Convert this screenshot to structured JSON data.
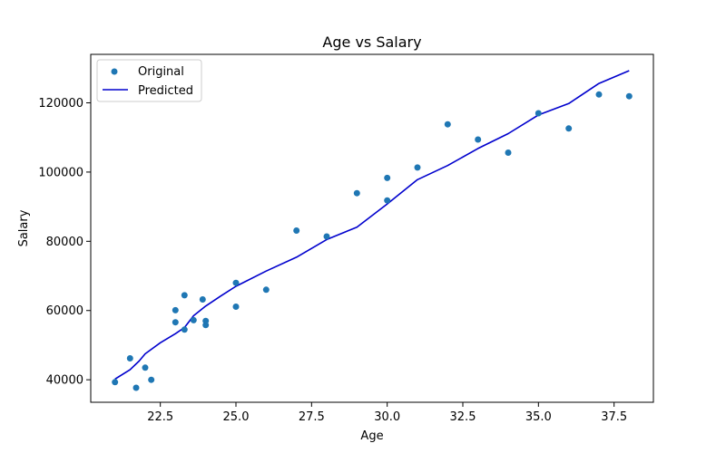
{
  "chart_data": {
    "type": "scatter",
    "title": "Age vs Salary",
    "xlabel": "Age",
    "ylabel": "Salary",
    "xlim": [
      20.2,
      38.8
    ],
    "ylim": [
      33500,
      134000
    ],
    "x_ticks": [
      22.5,
      25.0,
      27.5,
      30.0,
      32.5,
      35.0,
      37.5
    ],
    "x_tick_labels": [
      "22.5",
      "25.0",
      "27.5",
      "30.0",
      "32.5",
      "35.0",
      "37.5"
    ],
    "y_ticks": [
      40000,
      60000,
      80000,
      100000,
      120000
    ],
    "y_tick_labels": [
      "40000",
      "60000",
      "80000",
      "100000",
      "120000"
    ],
    "grid": false,
    "legend_position": "upper-left",
    "series": [
      {
        "name": "Original",
        "kind": "scatter",
        "color": "#1f77b4",
        "points": [
          [
            21.0,
            39300
          ],
          [
            21.5,
            46200
          ],
          [
            21.7,
            37700
          ],
          [
            22.0,
            43500
          ],
          [
            22.2,
            40000
          ],
          [
            23.0,
            56600
          ],
          [
            23.0,
            60100
          ],
          [
            23.3,
            54500
          ],
          [
            23.3,
            64400
          ],
          [
            23.6,
            57200
          ],
          [
            23.9,
            63200
          ],
          [
            24.0,
            55800
          ],
          [
            24.0,
            57000
          ],
          [
            25.0,
            61100
          ],
          [
            25.0,
            68000
          ],
          [
            26.0,
            66000
          ],
          [
            27.0,
            83100
          ],
          [
            28.0,
            81400
          ],
          [
            29.0,
            93900
          ],
          [
            30.0,
            91800
          ],
          [
            30.0,
            98300
          ],
          [
            31.0,
            101300
          ],
          [
            32.0,
            113800
          ],
          [
            33.0,
            109400
          ],
          [
            34.0,
            105600
          ],
          [
            35.0,
            117000
          ],
          [
            36.0,
            112600
          ],
          [
            37.0,
            122400
          ],
          [
            38.0,
            121900
          ]
        ]
      },
      {
        "name": "Predicted",
        "kind": "line",
        "color": "#0000cd",
        "points": [
          [
            21.0,
            40200
          ],
          [
            21.5,
            42900
          ],
          [
            21.8,
            45400
          ],
          [
            22.0,
            47500
          ],
          [
            22.5,
            50700
          ],
          [
            23.0,
            53300
          ],
          [
            23.3,
            55100
          ],
          [
            23.6,
            58500
          ],
          [
            24.0,
            61300
          ],
          [
            24.5,
            64200
          ],
          [
            25.0,
            67000
          ],
          [
            26.0,
            71400
          ],
          [
            27.0,
            75400
          ],
          [
            28.0,
            80500
          ],
          [
            29.0,
            84100
          ],
          [
            30.0,
            90800
          ],
          [
            31.0,
            97800
          ],
          [
            32.0,
            101900
          ],
          [
            33.0,
            106800
          ],
          [
            34.0,
            111100
          ],
          [
            35.0,
            116500
          ],
          [
            36.0,
            119800
          ],
          [
            37.0,
            125600
          ],
          [
            38.0,
            129300
          ]
        ]
      }
    ]
  }
}
